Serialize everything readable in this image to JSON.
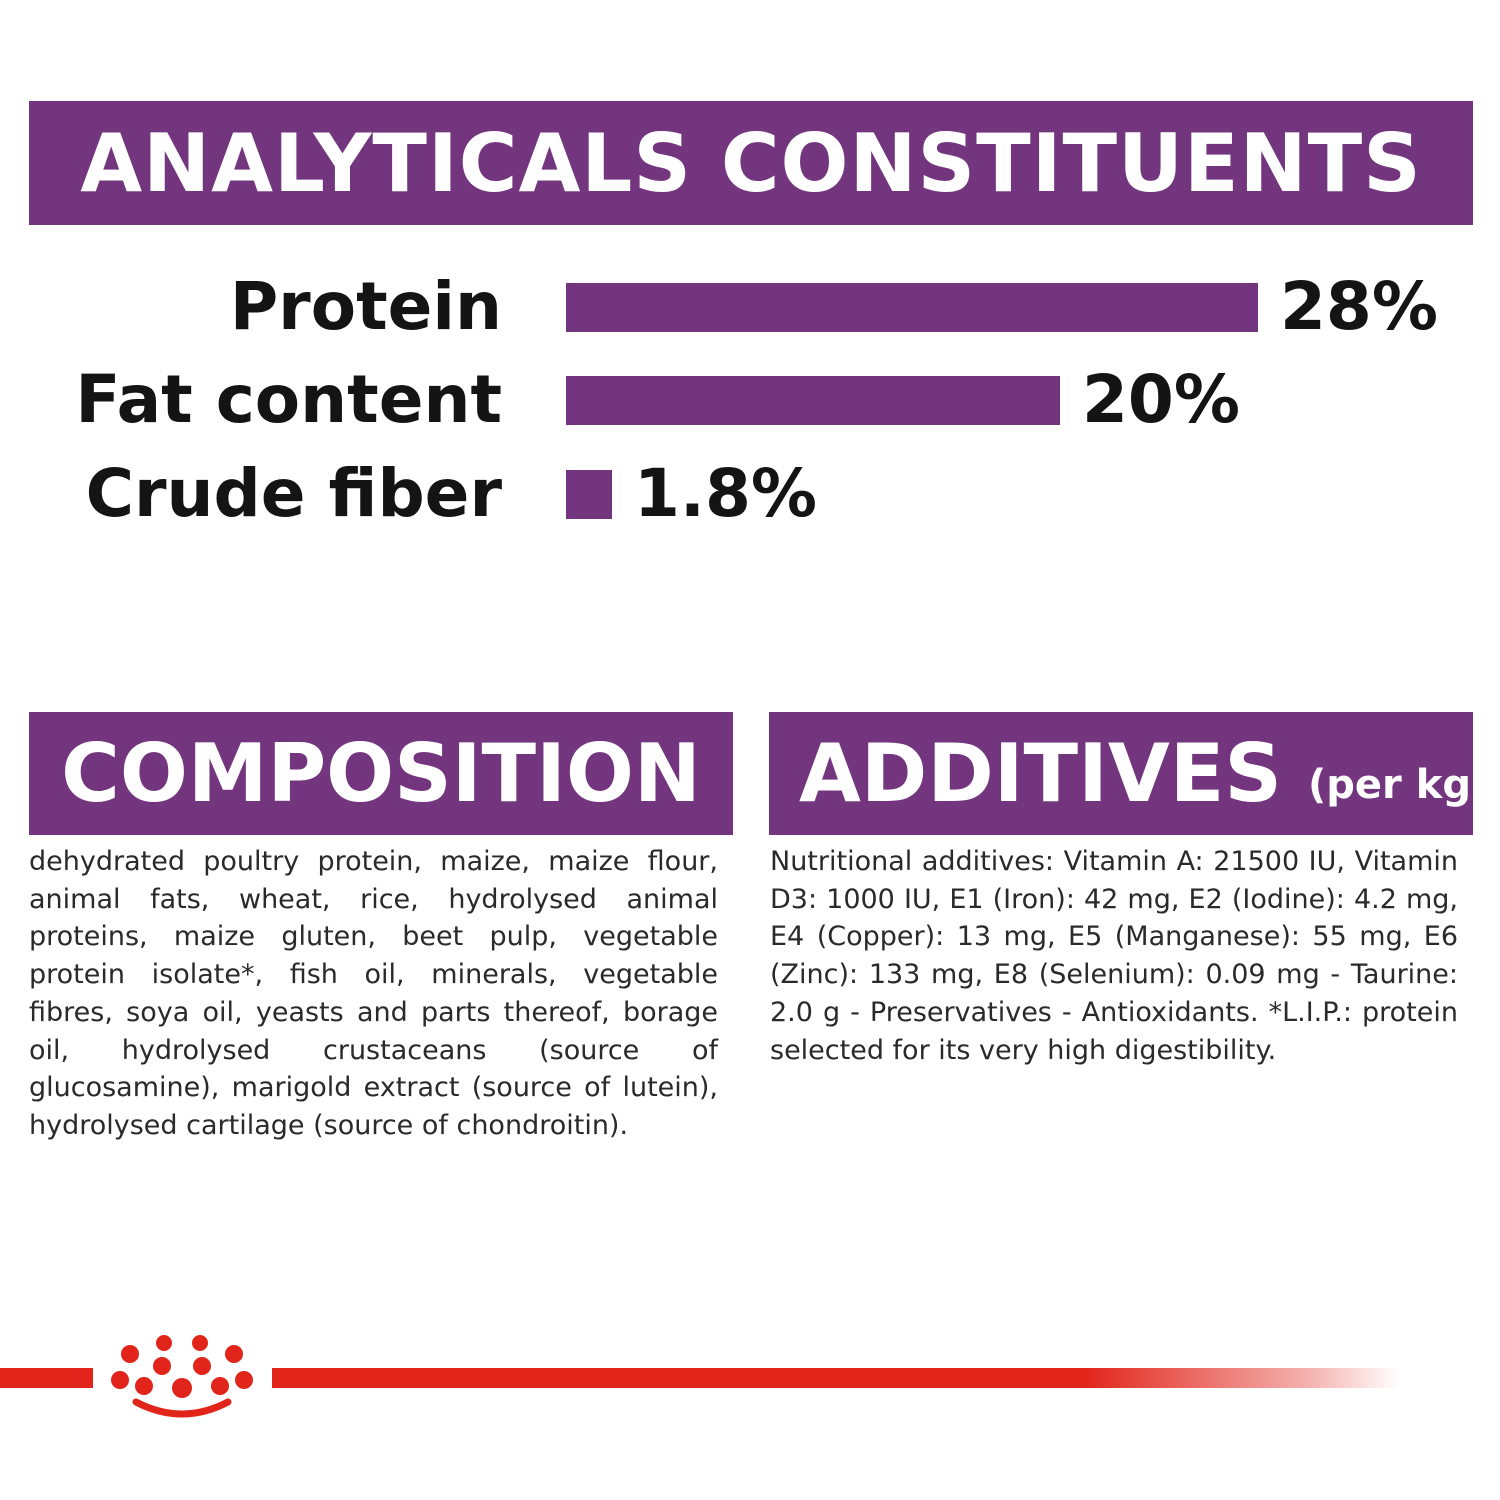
{
  "analytical": {
    "title": "ANALYTICALS CONSTITUENTS",
    "rows": [
      {
        "label": "Protein",
        "value_text": "28%",
        "value": 28
      },
      {
        "label": "Fat content",
        "value_text": "20%",
        "value": 20
      },
      {
        "label": "Crude fiber",
        "value_text": "1.8%",
        "value": 1.8
      }
    ]
  },
  "composition": {
    "title": "COMPOSITION",
    "text": "dehydrated poultry protein, maize, maize flour, animal fats, wheat, rice, hydrolysed animal proteins, maize gluten, beet pulp, vegetable protein isolate*, fish oil, minerals, vegetable fibres, soya oil, yeasts and parts thereof, borage oil, hydrolysed crustaceans (source of glucosamine), marigold extract (source of lutein), hydrolysed cartilage (source of chondroitin)."
  },
  "additives": {
    "title": "ADDITIVES",
    "unit": "(per kg)",
    "text": "Nutritional additives: Vitamin A: 21500 IU, Vitamin D3: 1000 IU, E1 (Iron): 42 mg, E2 (Iodine): 4.2 mg, E4 (Copper): 13 mg, E5 (Manganese): 55 mg, E6 (Zinc): 133 mg, E8 (Selenium): 0.09 mg - Taurine: 2.0 g - Preservatives - Antioxidants. *L.I.P.: protein selected for its very high digestibility."
  },
  "colors": {
    "accent_purple": "#74357f",
    "brand_red": "#e1251b",
    "text": "#141414"
  },
  "icons": {
    "logo": "crown-logo"
  }
}
